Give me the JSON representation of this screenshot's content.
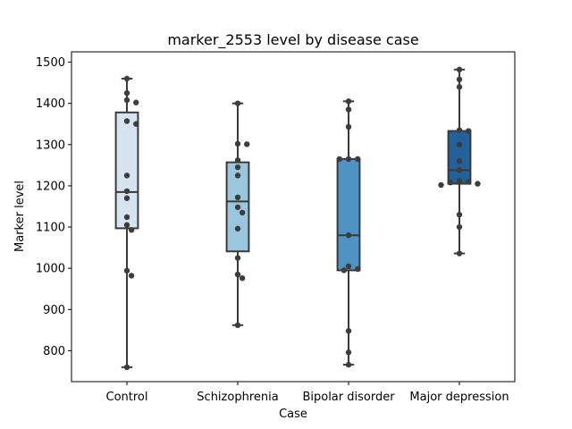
{
  "chart_data": {
    "type": "box",
    "title": "marker_2553 level by disease case",
    "xlabel": "Case",
    "ylabel": "Marker level",
    "ylim": [
      725,
      1525
    ],
    "yticks": [
      800,
      900,
      1000,
      1100,
      1200,
      1300,
      1400,
      1500
    ],
    "grid": false,
    "categories": [
      "Control",
      "Schizophrenia",
      "Bipolar disorder",
      "Major depression"
    ],
    "colors": [
      "#d6e4f1",
      "#9ac7df",
      "#4f93c4",
      "#23619a"
    ],
    "series": [
      {
        "category": "Control",
        "min": 760,
        "q1": 1097,
        "median": 1185,
        "q3": 1378,
        "max": 1460,
        "points": [
          1460,
          1425,
          1408,
          1402,
          1357,
          1350,
          1225,
          1187,
          1170,
          1124,
          1105,
          1093,
          994,
          982,
          760
        ]
      },
      {
        "category": "Schizophrenia",
        "min": 862,
        "q1": 1041,
        "median": 1162,
        "q3": 1257,
        "max": 1400,
        "points": [
          1400,
          1302,
          1301,
          1262,
          1245,
          1225,
          1172,
          1148,
          1135,
          1096,
          1025,
          985,
          976,
          862
        ]
      },
      {
        "category": "Bipolar disorder",
        "min": 766,
        "q1": 995,
        "median": 1080,
        "q3": 1265,
        "max": 1405,
        "points": [
          1405,
          1385,
          1343,
          1265,
          1265,
          1265,
          1080,
          1005,
          998,
          995,
          848,
          796,
          766
        ]
      },
      {
        "category": "Major depression",
        "min": 1036,
        "q1": 1205,
        "median": 1238,
        "q3": 1333,
        "max": 1482,
        "points": [
          1482,
          1458,
          1440,
          1335,
          1333,
          1300,
          1260,
          1238,
          1212,
          1210,
          1208,
          1205,
          1202,
          1130,
          1100,
          1036
        ]
      }
    ]
  }
}
